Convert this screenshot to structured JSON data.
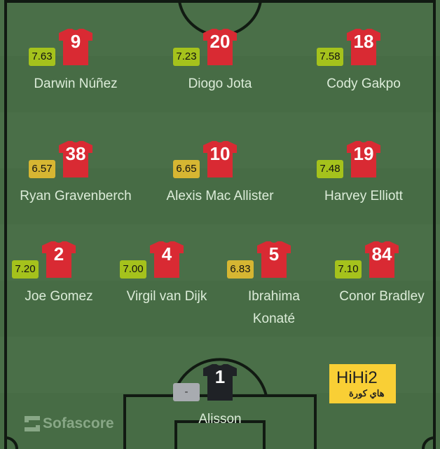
{
  "colors": {
    "pitch": "#4a6f48",
    "lines": "#111a12",
    "shirt": "#d92a33",
    "gk_shirt": "#1f2226",
    "rating_high": "#a5c21c",
    "rating_mid": "#d6b632",
    "rating_none": "#a8abb0"
  },
  "players": [
    {
      "name": "Darwin Núñez",
      "number": "9",
      "rating": "7.63",
      "tier": "high"
    },
    {
      "name": "Diogo Jota",
      "number": "20",
      "rating": "7.23",
      "tier": "high"
    },
    {
      "name": "Cody Gakpo",
      "number": "18",
      "rating": "7.58",
      "tier": "high"
    },
    {
      "name": "Ryan Gravenberch",
      "number": "38",
      "rating": "6.57",
      "tier": "mid"
    },
    {
      "name": "Alexis Mac Allister",
      "number": "10",
      "rating": "6.65",
      "tier": "mid"
    },
    {
      "name": "Harvey Elliott",
      "number": "19",
      "rating": "7.48",
      "tier": "high"
    },
    {
      "name": "Joe Gomez",
      "number": "2",
      "rating": "7.20",
      "tier": "high"
    },
    {
      "name": "Virgil van Dijk",
      "number": "4",
      "rating": "7.00",
      "tier": "high"
    },
    {
      "name": "Ibrahima Konaté",
      "number": "5",
      "rating": "6.83",
      "tier": "mid"
    },
    {
      "name": "Conor Bradley",
      "number": "84",
      "rating": "7.10",
      "tier": "high"
    },
    {
      "name": "Alisson",
      "number": "1",
      "rating": "-",
      "tier": "none"
    }
  ],
  "branding": {
    "sofascore": "Sofascore",
    "hihi_latin": "HiHi2",
    "hihi_arabic": "هاي كورة"
  }
}
